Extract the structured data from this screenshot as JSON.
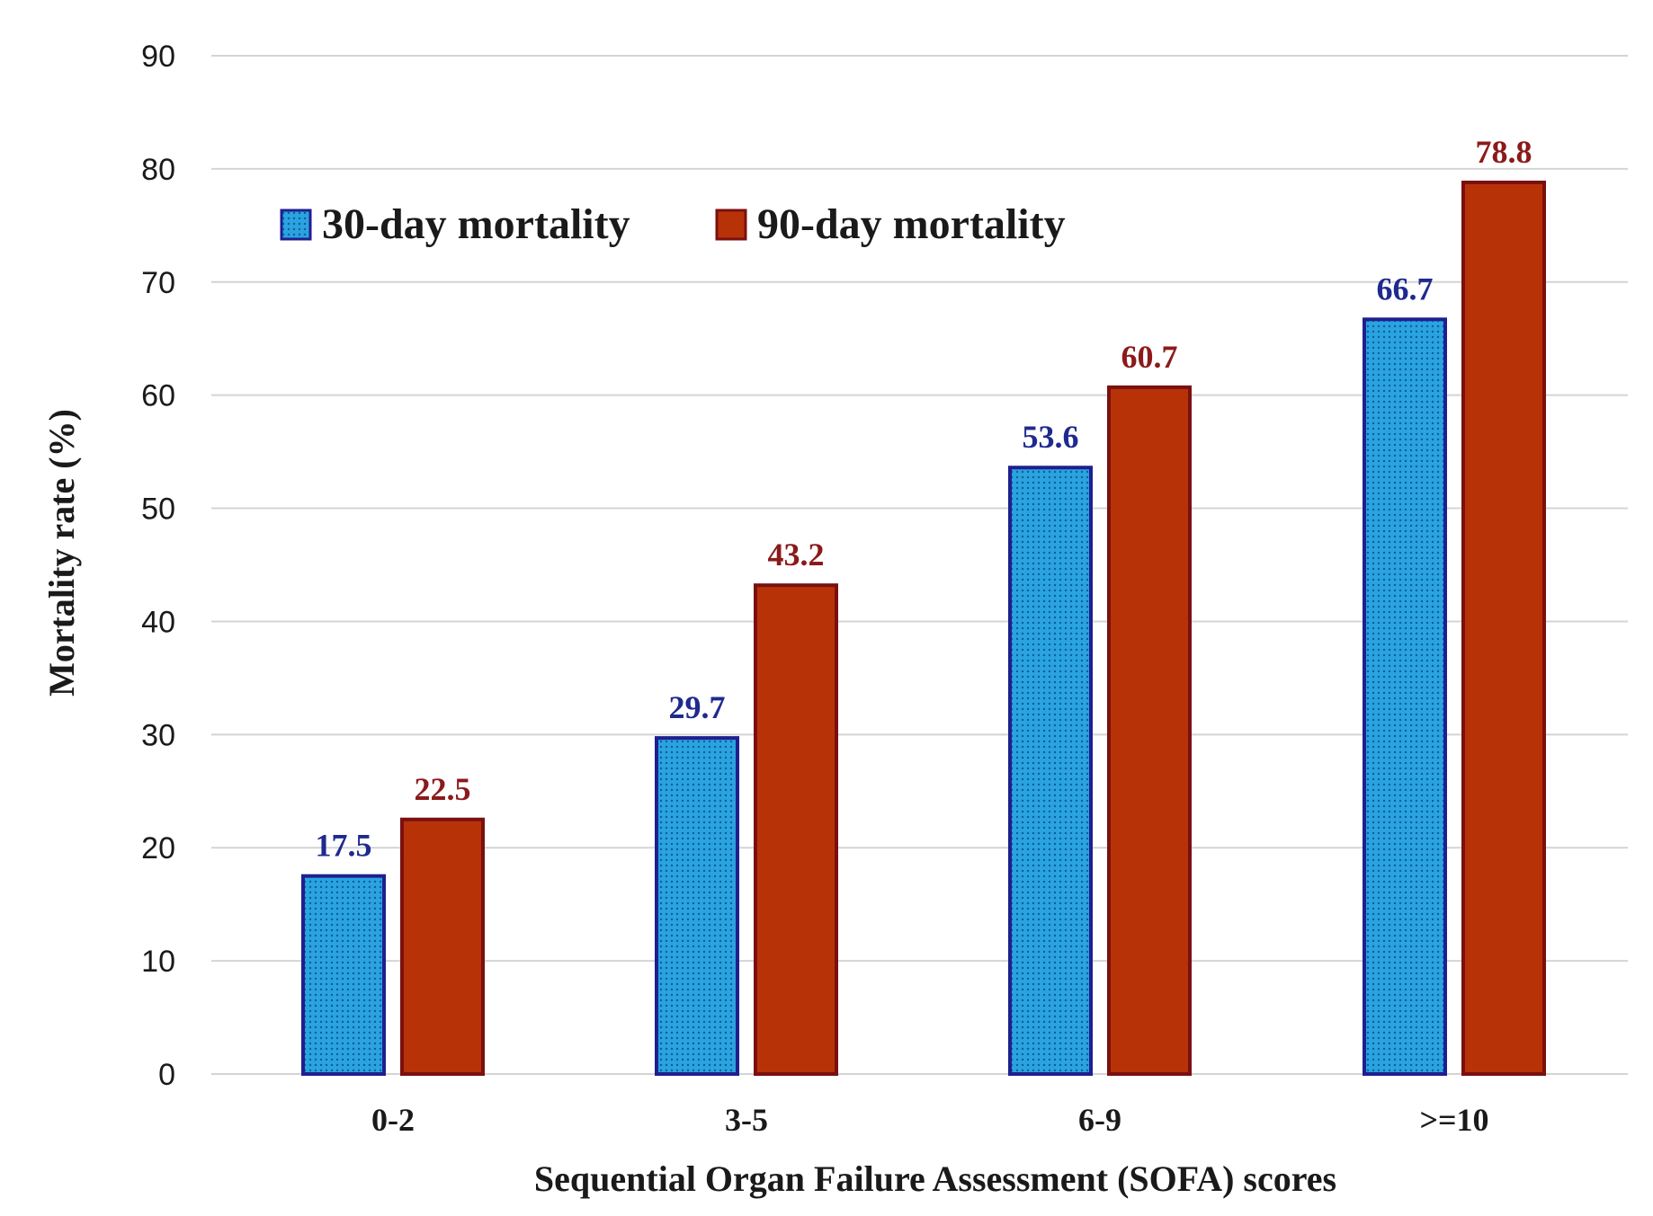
{
  "chart_data": {
    "type": "bar",
    "title": "",
    "xlabel": "Sequential Organ Failure Assessment (SOFA) scores",
    "ylabel": "Mortality rate (%)",
    "ylim": [
      0,
      90
    ],
    "yticks": [
      0,
      10,
      20,
      30,
      40,
      50,
      60,
      70,
      80,
      90
    ],
    "grid": true,
    "legend_position": "top-left",
    "categories": [
      "0-2",
      "3-5",
      "6-9",
      ">=10"
    ],
    "series": [
      {
        "name": "30-day mortality",
        "values": [
          17.5,
          29.7,
          53.6,
          66.7
        ],
        "labels": [
          "17.5",
          "29.7",
          "53.6",
          "66.7"
        ],
        "color": "#1a8fcf",
        "border_color": "#1f1f8f",
        "label_color": "#1f2a8f",
        "pattern": "dotted"
      },
      {
        "name": "90-day mortality",
        "values": [
          22.5,
          43.2,
          60.7,
          78.8
        ],
        "labels": [
          "22.5",
          "43.2",
          "60.7",
          "78.8"
        ],
        "color": "#b83208",
        "border_color": "#7a1010",
        "label_color": "#8b1a1a",
        "pattern": "solid"
      }
    ]
  }
}
